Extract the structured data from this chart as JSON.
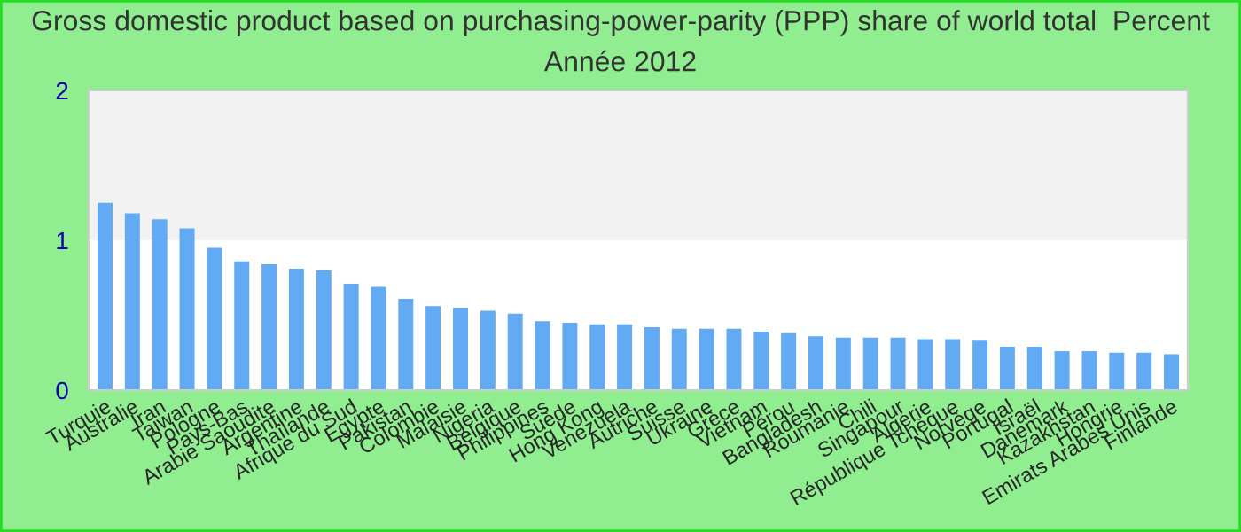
{
  "chart_data": {
    "type": "bar",
    "title": "Gross domestic product based on purchasing-power-parity (PPP) share of world total  Percent",
    "subtitle": "Année 2012",
    "categories": [
      "Turquie",
      "Australie",
      "Iran",
      "Taiwan",
      "Pologne",
      "Pays-Bas",
      "Arabie Saoudite",
      "Argentine",
      "Thaïlande",
      "Afrique du Sud",
      "Egypte",
      "Pakistan",
      "Colombie",
      "Malaisie",
      "Nigeria",
      "Belgique",
      "Philippines",
      "Suède",
      "Hong Kong",
      "Venezuela",
      "Autriche",
      "Suisse",
      "Ukraine",
      "Grèce",
      "Vietnam",
      "Pérou",
      "Bangladesh",
      "Roumanie",
      "Chili",
      "Singapour",
      "Algérie",
      "République Tchèque",
      "Norvège",
      "Portugal",
      "Israël",
      "Danemark",
      "Kazakhstan",
      "Hongrie",
      "Emirats Arabes Unis",
      "Finlande"
    ],
    "values": [
      1.25,
      1.18,
      1.14,
      1.08,
      0.95,
      0.86,
      0.84,
      0.81,
      0.8,
      0.71,
      0.69,
      0.61,
      0.56,
      0.55,
      0.53,
      0.51,
      0.46,
      0.45,
      0.44,
      0.44,
      0.42,
      0.41,
      0.41,
      0.41,
      0.39,
      0.38,
      0.36,
      0.35,
      0.35,
      0.35,
      0.34,
      0.34,
      0.33,
      0.29,
      0.29,
      0.26,
      0.26,
      0.25,
      0.25,
      0.24
    ],
    "color": "#62aaf4",
    "ylim": [
      0,
      2
    ],
    "yticks": [
      0,
      1,
      2
    ],
    "grid": false,
    "bands": [
      {
        "axis": "y",
        "from": 1,
        "to": 2,
        "color": "#f2f2f2"
      }
    ]
  }
}
